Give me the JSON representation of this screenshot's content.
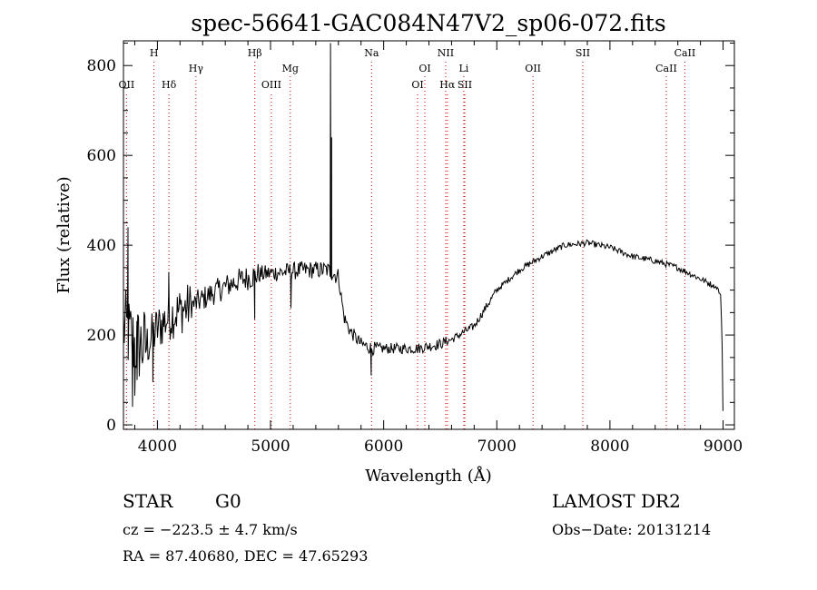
{
  "chart_data": {
    "type": "line",
    "title": "spec-56641-GAC084N47V2_sp06-072.fits",
    "xlabel": "Wavelength (Å)",
    "ylabel": "Flux (relative)",
    "xlim": [
      3700,
      9100
    ],
    "ylim": [
      -10,
      855
    ],
    "xticks": [
      4000,
      5000,
      6000,
      7000,
      8000,
      9000
    ],
    "xtick_labels": [
      "4000",
      "5000",
      "6000",
      "7000",
      "8000",
      "9000"
    ],
    "yticks": [
      0,
      200,
      400,
      600,
      800
    ],
    "ytick_labels": [
      "0",
      "200",
      "400",
      "600",
      "800"
    ],
    "grid": false,
    "series": [
      {
        "color": "#000000",
        "noise": [
          [
            3700,
            3900,
            90
          ],
          [
            3900,
            4300,
            55
          ],
          [
            4300,
            4900,
            28
          ],
          [
            4900,
            5600,
            20
          ],
          [
            5600,
            5950,
            15
          ],
          [
            5950,
            6550,
            12
          ],
          [
            6550,
            7000,
            9
          ],
          [
            7000,
            8900,
            7
          ],
          [
            8900,
            9000,
            4
          ]
        ],
        "points": [
          {
            "x": 3700,
            "y": 220
          },
          {
            "x": 3800,
            "y": 180
          },
          {
            "x": 3900,
            "y": 175
          },
          {
            "x": 4000,
            "y": 215
          },
          {
            "x": 4100,
            "y": 240
          },
          {
            "x": 4200,
            "y": 255
          },
          {
            "x": 4300,
            "y": 265
          },
          {
            "x": 4500,
            "y": 295
          },
          {
            "x": 4700,
            "y": 320
          },
          {
            "x": 4900,
            "y": 335
          },
          {
            "x": 5100,
            "y": 340
          },
          {
            "x": 5300,
            "y": 345
          },
          {
            "x": 5500,
            "y": 345
          },
          {
            "x": 5600,
            "y": 330
          },
          {
            "x": 5650,
            "y": 240
          },
          {
            "x": 5700,
            "y": 210
          },
          {
            "x": 5800,
            "y": 180
          },
          {
            "x": 5900,
            "y": 170
          },
          {
            "x": 6100,
            "y": 170
          },
          {
            "x": 6300,
            "y": 170
          },
          {
            "x": 6500,
            "y": 180
          },
          {
            "x": 6600,
            "y": 190
          },
          {
            "x": 6800,
            "y": 220
          },
          {
            "x": 6900,
            "y": 260
          },
          {
            "x": 7000,
            "y": 300
          },
          {
            "x": 7200,
            "y": 345
          },
          {
            "x": 7400,
            "y": 375
          },
          {
            "x": 7600,
            "y": 400
          },
          {
            "x": 7800,
            "y": 405
          },
          {
            "x": 8000,
            "y": 395
          },
          {
            "x": 8200,
            "y": 375
          },
          {
            "x": 8400,
            "y": 365
          },
          {
            "x": 8600,
            "y": 350
          },
          {
            "x": 8800,
            "y": 325
          },
          {
            "x": 8950,
            "y": 305
          },
          {
            "x": 8980,
            "y": 285
          },
          {
            "x": 8995,
            "y": 150
          },
          {
            "x": 9000,
            "y": 0
          }
        ],
        "features": [
          {
            "x": 3740,
            "y": 440
          },
          {
            "x": 3780,
            "y": 40
          },
          {
            "x": 3800,
            "y": 65
          },
          {
            "x": 3820,
            "y": 100
          },
          {
            "x": 3960,
            "y": 95
          },
          {
            "x": 4100,
            "y": 340
          },
          {
            "x": 4860,
            "y": 235
          },
          {
            "x": 5180,
            "y": 260
          },
          {
            "x": 5530,
            "y": 850
          },
          {
            "x": 5540,
            "y": 640
          },
          {
            "x": 5890,
            "y": 110
          }
        ]
      }
    ],
    "line_markers": [
      {
        "label": "OII",
        "x": 3727,
        "tier": 3
      },
      {
        "label": "H",
        "x": 3970,
        "tier": 1
      },
      {
        "label": "Hδ",
        "x": 4102,
        "tier": 3
      },
      {
        "label": "Hγ",
        "x": 4341,
        "tier": 2
      },
      {
        "label": "Hβ",
        "x": 4861,
        "tier": 1
      },
      {
        "label": "OIII",
        "x": 5007,
        "tier": 3
      },
      {
        "label": "Mg",
        "x": 5175,
        "tier": 2
      },
      {
        "label": "Na",
        "x": 5893,
        "tier": 1
      },
      {
        "label": "OI",
        "x": 6300,
        "tier": 3
      },
      {
        "label": "OI",
        "x": 6364,
        "tier": 2
      },
      {
        "label": "NII",
        "x": 6548,
        "tier": 1
      },
      {
        "label": "Hα",
        "x": 6563,
        "tier": 3
      },
      {
        "label": "Li",
        "x": 6708,
        "tier": 2
      },
      {
        "label": "SII",
        "x": 6717,
        "tier": 3
      },
      {
        "label": "OII",
        "x": 7320,
        "tier": 2
      },
      {
        "label": "SII",
        "x": 7760,
        "tier": 1
      },
      {
        "label": "CaII",
        "x": 8498,
        "tier": 2
      },
      {
        "label": "CaII",
        "x": 8662,
        "tier": 1
      }
    ],
    "marker_color": "#cc0000"
  },
  "info": {
    "object_class": "STAR",
    "subclass": "G0",
    "survey": "LAMOST DR2",
    "velocity": "cz = −223.5 ± 4.7 km/s",
    "obs_date": "Obs−Date: 20131214",
    "coords": "RA =  87.40680, DEC =  47.65293"
  }
}
